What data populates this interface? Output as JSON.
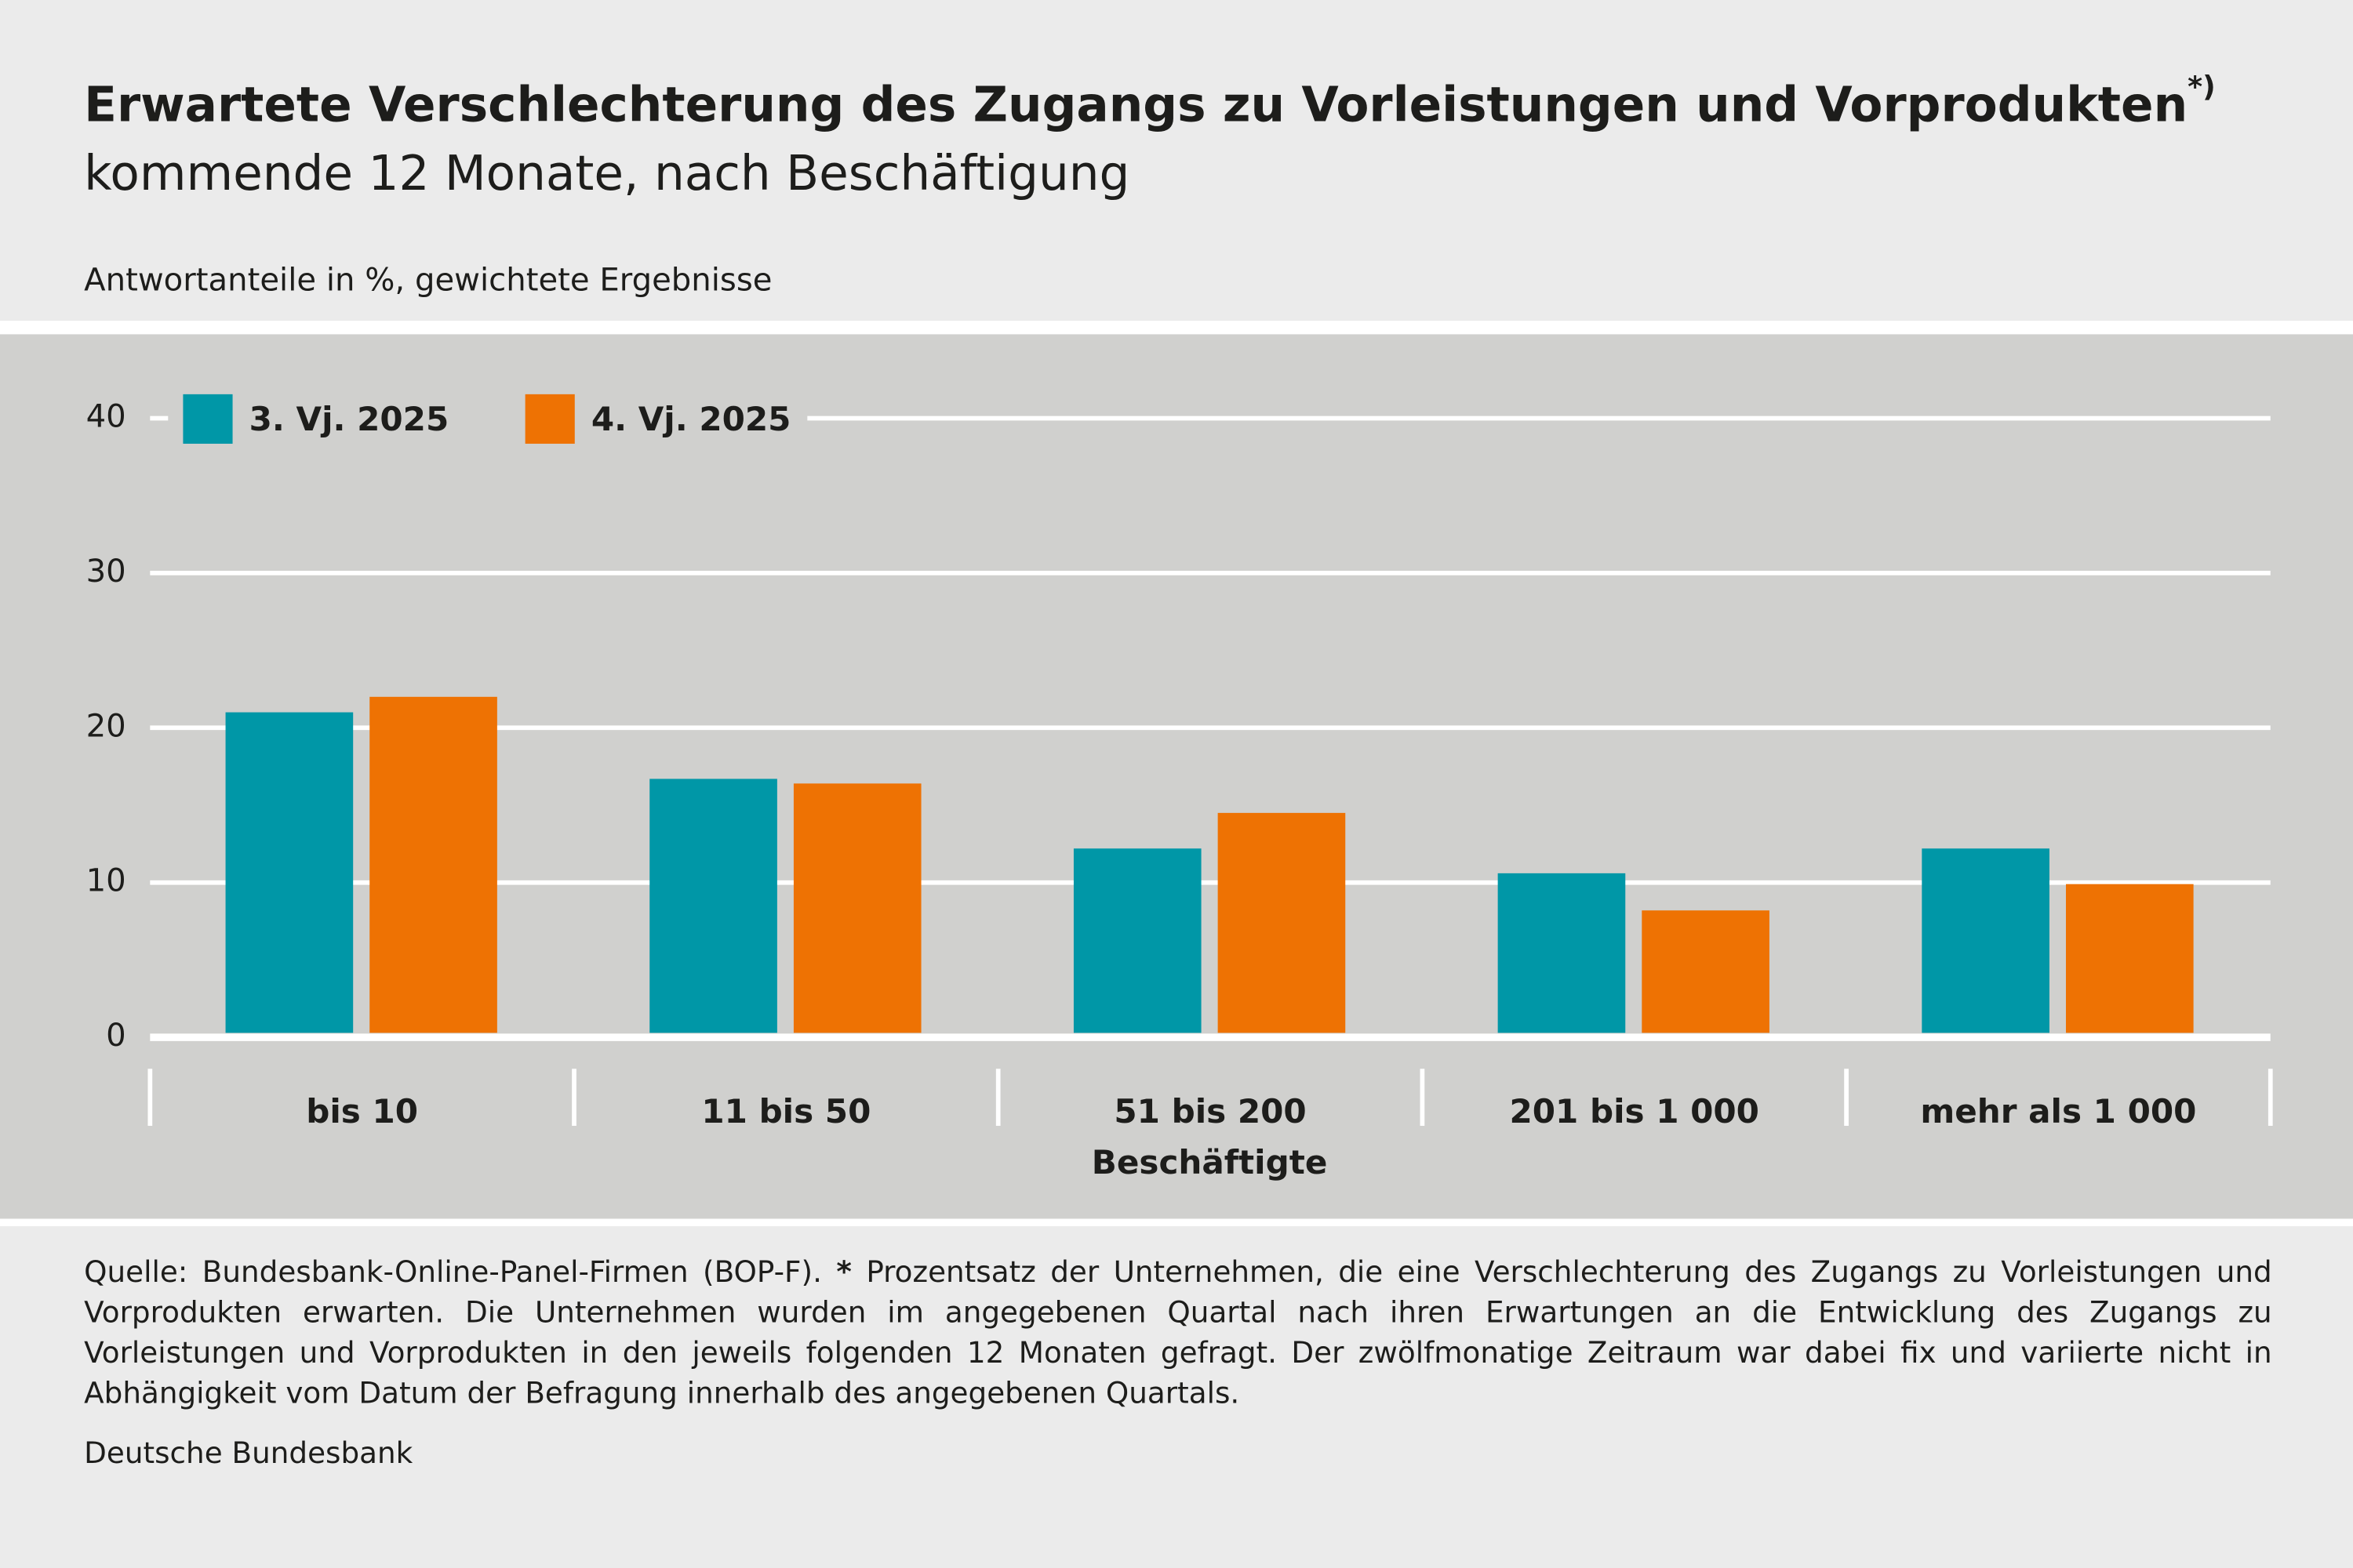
{
  "chart_data": {
    "type": "bar",
    "title": "Erwartete Verschlechterung des Zugangs zu Vorleistungen und Vorprodukten",
    "title_note": "*)",
    "subtitle": "kommende 12 Monate, nach Beschäftigung",
    "unit_label": "Antwortanteile in %, gewichtete Ergebnisse",
    "x_label": "Beschäftigte",
    "categories": [
      "bis 10",
      "11 bis 50",
      "51 bis 200",
      "201 bis 1 000",
      "mehr als 1 000"
    ],
    "series": [
      {
        "name": "3. Vj. 2025",
        "color": "#0097a7",
        "values": [
          21,
          16.7,
          12.2,
          10.6,
          12.2
        ]
      },
      {
        "name": "4. Vj. 2025",
        "color": "#ee7203",
        "values": [
          22,
          16.4,
          14.5,
          8.2,
          9.9
        ]
      }
    ],
    "ylim": [
      0,
      40
    ],
    "yticks": [
      0,
      10,
      20,
      30,
      40
    ],
    "grid": true,
    "footnote": {
      "source": "Quelle: Bundesbank-Online-Panel-Firmen (BOP-F).",
      "star": "*",
      "text": "Prozentsatz der Unternehmen, die eine Verschlechterung des Zugangs zu Vorleistungen und Vorprodukten erwarten. Die Unternehmen wurden im angegebenen Quartal nach ihren Erwartungen an die Entwicklung des Zugangs zu Vorleistungen und Vorprodukten in den jeweils folgenden 12 Monaten gefragt. Der zwölfmonatige Zeitraum war dabei fix und variierte nicht in Abhängigkeit vom Datum der Befragung innerhalb des angegebenen Quartals."
    },
    "publisher": "Deutsche Bundesbank"
  }
}
